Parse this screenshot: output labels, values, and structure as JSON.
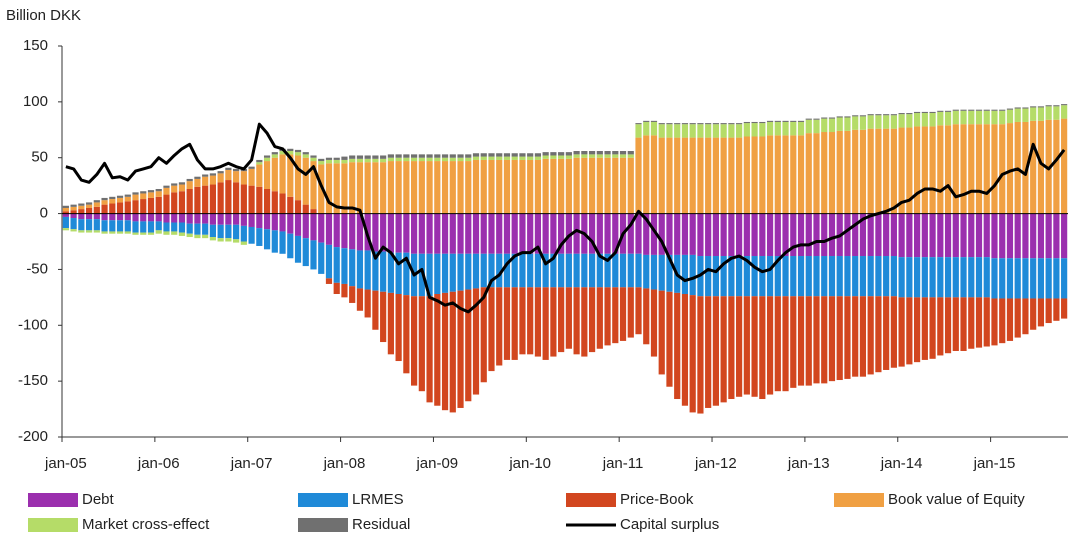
{
  "chart_data": {
    "type": "bar",
    "y_axis_label": "Billion DKK",
    "ylim": [
      -200,
      150
    ],
    "yticks": [
      -200,
      -150,
      -100,
      -50,
      0,
      50,
      100,
      150
    ],
    "categories": [
      "jan-05",
      null,
      null,
      null,
      null,
      null,
      null,
      null,
      null,
      null,
      null,
      null,
      "jan-06",
      null,
      null,
      null,
      null,
      null,
      null,
      null,
      null,
      null,
      null,
      null,
      "jan-07",
      null,
      null,
      null,
      null,
      null,
      null,
      null,
      null,
      null,
      null,
      null,
      "jan-08",
      null,
      null,
      null,
      null,
      null,
      null,
      null,
      null,
      null,
      null,
      null,
      "jan-09",
      null,
      null,
      null,
      null,
      null,
      null,
      null,
      null,
      null,
      null,
      null,
      "jan-10",
      null,
      null,
      null,
      null,
      null,
      null,
      null,
      null,
      null,
      null,
      null,
      "jan-11",
      null,
      null,
      null,
      null,
      null,
      null,
      null,
      null,
      null,
      null,
      null,
      "jan-12",
      null,
      null,
      null,
      null,
      null,
      null,
      null,
      null,
      null,
      null,
      null,
      "jan-13",
      null,
      null,
      null,
      null,
      null,
      null,
      null,
      null,
      null,
      null,
      null,
      "jan-14",
      null,
      null,
      null,
      null,
      null,
      null,
      null,
      null,
      null,
      null,
      null,
      "jan-15",
      null,
      null,
      null,
      null,
      null,
      null,
      null,
      null,
      null
    ],
    "series": [
      {
        "name": "Debt",
        "color": "#9b2fae",
        "values": [
          -3,
          -4,
          -5,
          -5,
          -5,
          -6,
          -6,
          -6,
          -6,
          -7,
          -7,
          -7,
          -7,
          -8,
          -8,
          -8,
          -9,
          -9,
          -9,
          -10,
          -10,
          -10,
          -10,
          -11,
          -12,
          -13,
          -14,
          -15,
          -16,
          -18,
          -20,
          -22,
          -24,
          -26,
          -28,
          -30,
          -31,
          -32,
          -33,
          -33,
          -34,
          -34,
          -35,
          -35,
          -35,
          -36,
          -36,
          -36,
          -36,
          -36,
          -36,
          -36,
          -36,
          -36,
          -36,
          -36,
          -36,
          -36,
          -36,
          -36,
          -36,
          -36,
          -36,
          -36,
          -36,
          -36,
          -36,
          -36,
          -36,
          -36,
          -36,
          -36,
          -36,
          -36,
          -36,
          -37,
          -37,
          -37,
          -37,
          -37,
          -37,
          -37,
          -38,
          -38,
          -38,
          -38,
          -38,
          -38,
          -38,
          -38,
          -38,
          -38,
          -38,
          -38,
          -38,
          -38,
          -38,
          -38,
          -38,
          -38,
          -38,
          -38,
          -38,
          -38,
          -38,
          -38,
          -38,
          -38,
          -39,
          -39,
          -39,
          -39,
          -39,
          -39,
          -39,
          -39,
          -39,
          -39,
          -39,
          -39,
          -40,
          -40,
          -40,
          -40,
          -40,
          -40,
          -40,
          -40,
          -40,
          -40
        ]
      },
      {
        "name": "LRMES",
        "color": "#1f8ad8",
        "values": [
          -10,
          -10,
          -10,
          -10,
          -10,
          -10,
          -10,
          -10,
          -10,
          -10,
          -10,
          -10,
          -8,
          -8,
          -8,
          -9,
          -9,
          -10,
          -10,
          -11,
          -12,
          -12,
          -13,
          -14,
          -15,
          -16,
          -18,
          -20,
          -20,
          -22,
          -24,
          -25,
          -26,
          -28,
          -30,
          -32,
          -32,
          -33,
          -34,
          -35,
          -35,
          -36,
          -36,
          -37,
          -38,
          -38,
          -38,
          -38,
          -36,
          -35,
          -34,
          -33,
          -32,
          -31,
          -30,
          -30,
          -30,
          -30,
          -30,
          -30,
          -30,
          -30,
          -30,
          -30,
          -30,
          -30,
          -30,
          -30,
          -30,
          -30,
          -30,
          -30,
          -30,
          -30,
          -30,
          -30,
          -31,
          -32,
          -33,
          -34,
          -35,
          -36,
          -36,
          -36,
          -36,
          -36,
          -36,
          -36,
          -36,
          -36,
          -36,
          -36,
          -36,
          -36,
          -36,
          -36,
          -36,
          -36,
          -36,
          -36,
          -36,
          -36,
          -36,
          -36,
          -36,
          -36,
          -36,
          -36,
          -36,
          -36,
          -36,
          -36,
          -36,
          -36,
          -36,
          -36,
          -36,
          -36,
          -36,
          -36,
          -36,
          -36,
          -36,
          -36,
          -36,
          -36,
          -36,
          -36,
          -36,
          -36
        ]
      },
      {
        "name": "Price-Book",
        "color": "#d2461f",
        "values": [
          2,
          3,
          4,
          5,
          6,
          8,
          9,
          10,
          11,
          12,
          13,
          14,
          15,
          17,
          19,
          20,
          22,
          24,
          25,
          26,
          28,
          30,
          28,
          26,
          25,
          24,
          22,
          20,
          18,
          15,
          12,
          8,
          4,
          0,
          -5,
          -10,
          -12,
          -15,
          -20,
          -25,
          -35,
          -45,
          -55,
          -60,
          -70,
          -80,
          -85,
          -95,
          -100,
          -105,
          -108,
          -105,
          -100,
          -95,
          -85,
          -75,
          -70,
          -65,
          -65,
          -60,
          -60,
          -62,
          -65,
          -62,
          -58,
          -55,
          -60,
          -62,
          -58,
          -55,
          -52,
          -50,
          -48,
          -45,
          -42,
          -50,
          -60,
          -75,
          -85,
          -95,
          -100,
          -105,
          -105,
          -100,
          -98,
          -95,
          -92,
          -90,
          -88,
          -90,
          -92,
          -88,
          -85,
          -85,
          -82,
          -80,
          -80,
          -78,
          -78,
          -76,
          -75,
          -74,
          -72,
          -72,
          -70,
          -68,
          -66,
          -64,
          -62,
          -60,
          -58,
          -56,
          -55,
          -52,
          -50,
          -48,
          -48,
          -46,
          -45,
          -44,
          -42,
          -40,
          -38,
          -35,
          -32,
          -28,
          -25,
          -22,
          -20,
          -18
        ]
      },
      {
        "name": "Book value of Equity",
        "color": "#f0a043",
        "values": [
          3,
          3,
          3,
          3,
          4,
          4,
          4,
          4,
          4,
          5,
          5,
          5,
          5,
          6,
          6,
          6,
          7,
          7,
          8,
          8,
          8,
          9,
          10,
          12,
          15,
          20,
          25,
          30,
          35,
          38,
          40,
          42,
          43,
          44,
          45,
          45,
          45,
          46,
          46,
          46,
          46,
          46,
          47,
          47,
          47,
          47,
          47,
          47,
          47,
          47,
          47,
          47,
          47,
          48,
          48,
          48,
          48,
          48,
          48,
          48,
          48,
          48,
          49,
          49,
          49,
          49,
          50,
          50,
          50,
          50,
          50,
          50,
          50,
          50,
          68,
          70,
          70,
          68,
          68,
          68,
          68,
          68,
          68,
          68,
          68,
          68,
          68,
          68,
          69,
          69,
          69,
          70,
          70,
          70,
          70,
          70,
          72,
          72,
          73,
          73,
          74,
          74,
          75,
          75,
          76,
          76,
          76,
          76,
          77,
          77,
          78,
          78,
          78,
          79,
          79,
          80,
          80,
          80,
          80,
          80,
          80,
          80,
          81,
          82,
          82,
          83,
          83,
          84,
          84,
          85
        ]
      },
      {
        "name": "Market cross-effect",
        "color": "#b5dc68",
        "values": [
          -2,
          -2,
          -2,
          -2,
          -2,
          -2,
          -2,
          -2,
          -2,
          -2,
          -2,
          -2,
          -3,
          -3,
          -3,
          -3,
          -3,
          -3,
          -3,
          -3,
          -3,
          -3,
          -3,
          -3,
          0,
          2,
          3,
          3,
          3,
          3,
          3,
          3,
          3,
          3,
          3,
          3,
          3,
          3,
          3,
          3,
          3,
          3,
          3,
          3,
          3,
          3,
          3,
          3,
          3,
          3,
          3,
          3,
          3,
          3,
          3,
          3,
          3,
          3,
          3,
          3,
          3,
          3,
          3,
          3,
          3,
          3,
          3,
          3,
          3,
          3,
          3,
          3,
          3,
          3,
          12,
          12,
          12,
          12,
          12,
          12,
          12,
          12,
          12,
          12,
          12,
          12,
          12,
          12,
          12,
          12,
          12,
          12,
          12,
          12,
          12,
          12,
          12,
          12,
          12,
          12,
          12,
          12,
          12,
          12,
          12,
          12,
          12,
          12,
          12,
          12,
          12,
          12,
          12,
          12,
          12,
          12,
          12,
          12,
          12,
          12,
          12,
          12,
          12,
          12,
          12,
          12,
          12,
          12,
          12,
          12
        ]
      },
      {
        "name": "Residual",
        "color": "#707070",
        "values": [
          2,
          2,
          2,
          2,
          2,
          2,
          2,
          2,
          2,
          2,
          2,
          2,
          2,
          2,
          2,
          2,
          2,
          2,
          2,
          2,
          2,
          2,
          2,
          2,
          2,
          2,
          2,
          2,
          2,
          2,
          2,
          2,
          2,
          2,
          2,
          2,
          3,
          3,
          3,
          3,
          3,
          3,
          3,
          3,
          3,
          3,
          3,
          3,
          3,
          3,
          3,
          3,
          3,
          3,
          3,
          3,
          3,
          3,
          3,
          3,
          3,
          3,
          3,
          3,
          3,
          3,
          3,
          3,
          3,
          3,
          3,
          3,
          3,
          3,
          1,
          1,
          1,
          1,
          1,
          1,
          1,
          1,
          1,
          1,
          1,
          1,
          1,
          1,
          1,
          1,
          1,
          1,
          1,
          1,
          1,
          1,
          1,
          1,
          1,
          1,
          1,
          1,
          1,
          1,
          1,
          1,
          1,
          1,
          1,
          1,
          1,
          1,
          1,
          1,
          1,
          1,
          1,
          1,
          1,
          1,
          1,
          1,
          1,
          1,
          1,
          1,
          1,
          1,
          1,
          1
        ]
      },
      {
        "name": "Capital surplus",
        "type": "line",
        "color": "#000000",
        "values": [
          42,
          40,
          30,
          28,
          35,
          45,
          32,
          33,
          30,
          38,
          40,
          42,
          50,
          45,
          52,
          58,
          62,
          48,
          40,
          40,
          42,
          45,
          42,
          40,
          48,
          80,
          72,
          60,
          58,
          50,
          40,
          35,
          42,
          25,
          10,
          6,
          5,
          5,
          3,
          -20,
          -40,
          -30,
          -35,
          -45,
          -40,
          -55,
          -50,
          -75,
          -78,
          -82,
          -80,
          -85,
          -88,
          -82,
          -75,
          -60,
          -55,
          -45,
          -38,
          -35,
          -35,
          -30,
          -45,
          -40,
          -28,
          -20,
          -15,
          -18,
          -25,
          -38,
          -42,
          -35,
          -18,
          -10,
          2,
          -5,
          -15,
          -25,
          -40,
          -55,
          -60,
          -58,
          -55,
          -50,
          -52,
          -45,
          -40,
          -38,
          -42,
          -48,
          -52,
          -50,
          -42,
          -35,
          -30,
          -28,
          -28,
          -25,
          -25,
          -22,
          -20,
          -15,
          -10,
          -5,
          -2,
          0,
          2,
          5,
          10,
          12,
          18,
          22,
          22,
          20,
          25,
          15,
          17,
          20,
          20,
          18,
          25,
          35,
          38,
          40,
          35,
          62,
          45,
          40,
          48,
          57
        ]
      }
    ]
  }
}
